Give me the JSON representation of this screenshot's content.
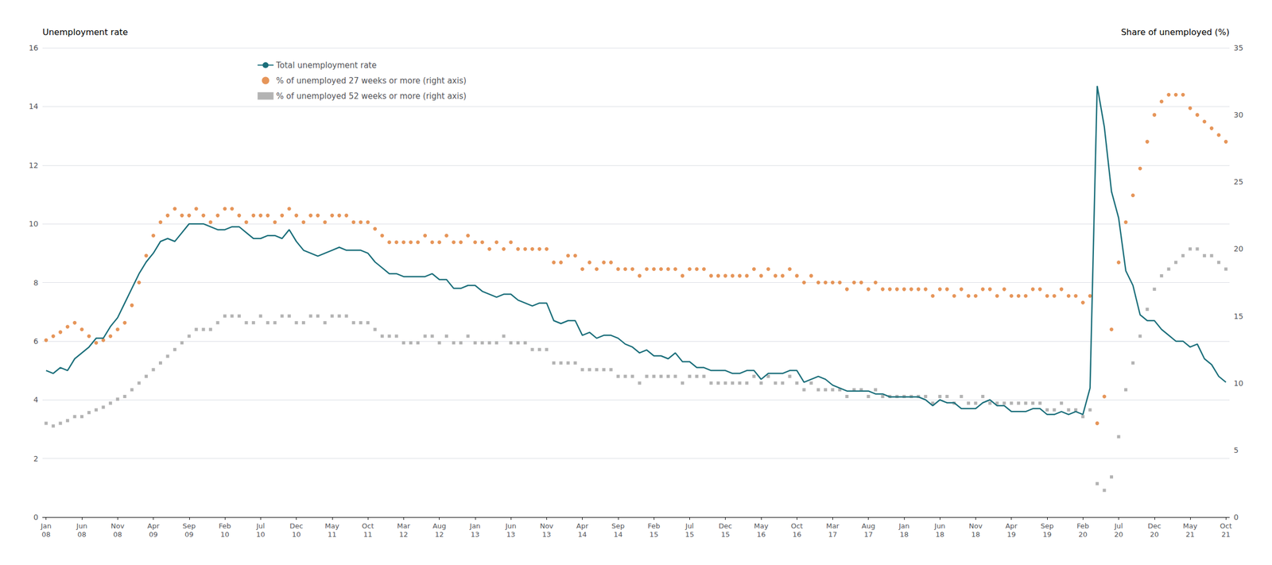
{
  "chart_data": {
    "type": "line",
    "ylabel": "Unemployment rate",
    "y2label": "Share of unemployed (%)",
    "categories": [
      "Jan\n08",
      null,
      null,
      null,
      null,
      "Jun\n08",
      null,
      null,
      null,
      null,
      "Nov\n08",
      null,
      null,
      null,
      null,
      "Apr\n09",
      null,
      null,
      null,
      null,
      "Sep\n09",
      null,
      null,
      null,
      null,
      "Feb\n10",
      null,
      null,
      null,
      null,
      "Jul\n10",
      null,
      null,
      null,
      null,
      "Dec\n10",
      null,
      null,
      null,
      null,
      "May\n11",
      null,
      null,
      null,
      null,
      "Oct\n11",
      null,
      null,
      null,
      null,
      "Mar\n12",
      null,
      null,
      null,
      null,
      "Aug\n12",
      null,
      null,
      null,
      null,
      "Jan\n13",
      null,
      null,
      null,
      null,
      "Jun\n13",
      null,
      null,
      null,
      null,
      "Nov\n13",
      null,
      null,
      null,
      null,
      "Apr\n14",
      null,
      null,
      null,
      null,
      "Sep\n14",
      null,
      null,
      null,
      null,
      "Feb\n15",
      null,
      null,
      null,
      null,
      "Jul\n15",
      null,
      null,
      null,
      null,
      "Dec\n15",
      null,
      null,
      null,
      null,
      "May\n16",
      null,
      null,
      null,
      null,
      "Oct\n16",
      null,
      null,
      null,
      null,
      "Mar\n17",
      null,
      null,
      null,
      null,
      "Aug\n17",
      null,
      null,
      null,
      null,
      "Jan\n18",
      null,
      null,
      null,
      null,
      "Jun\n18",
      null,
      null,
      null,
      null,
      "Nov\n18",
      null,
      null,
      null,
      null,
      "Apr\n19",
      null,
      null,
      null,
      null,
      "Sep\n19",
      null,
      null,
      null,
      null,
      "Feb\n20",
      null,
      null,
      null,
      null,
      "Jul\n20",
      null,
      null,
      null,
      null,
      "Dec\n20",
      null,
      null,
      null,
      null,
      "May\n21",
      null,
      null,
      null,
      null,
      "Oct\n21"
    ],
    "series": [
      {
        "name": "Total unemployment rate",
        "type": "line",
        "line_style": "solid",
        "color": "#1a6e7a",
        "values": [
          5.0,
          4.9,
          5.1,
          5.0,
          5.4,
          5.6,
          5.8,
          6.1,
          6.1,
          6.5,
          6.8,
          7.3,
          7.8,
          8.3,
          8.7,
          9.0,
          9.4,
          9.5,
          9.4,
          9.7,
          10.0,
          10.0,
          10.0,
          9.9,
          9.8,
          9.8,
          9.9,
          9.9,
          9.7,
          9.5,
          9.5,
          9.6,
          9.6,
          9.5,
          9.8,
          9.4,
          9.1,
          9.0,
          8.9,
          9.0,
          9.1,
          9.2,
          9.1,
          9.1,
          9.1,
          9.0,
          8.7,
          8.5,
          8.3,
          8.3,
          8.2,
          8.2,
          8.2,
          8.2,
          8.3,
          8.1,
          8.1,
          7.8,
          7.8,
          7.9,
          7.9,
          7.7,
          7.6,
          7.5,
          7.6,
          7.6,
          7.4,
          7.3,
          7.2,
          7.3,
          7.3,
          6.7,
          6.6,
          6.7,
          6.7,
          6.2,
          6.3,
          6.1,
          6.2,
          6.2,
          6.1,
          5.9,
          5.8,
          5.6,
          5.7,
          5.5,
          5.5,
          5.4,
          5.6,
          5.3,
          5.3,
          5.1,
          5.1,
          5.0,
          5.0,
          5.0,
          4.9,
          4.9,
          5.0,
          5.0,
          4.7,
          4.9,
          4.9,
          4.9,
          5.0,
          5.0,
          4.6,
          4.7,
          4.8,
          4.7,
          4.5,
          4.4,
          4.3,
          4.3,
          4.3,
          4.3,
          4.2,
          4.2,
          4.1,
          4.1,
          4.1,
          4.1,
          4.1,
          4.0,
          3.8,
          4.0,
          3.9,
          3.9,
          3.7,
          3.7,
          3.7,
          3.9,
          4.0,
          3.8,
          3.8,
          3.6,
          3.6,
          3.6,
          3.7,
          3.7,
          3.5,
          3.5,
          3.6,
          3.5,
          3.6,
          3.5,
          4.4,
          14.7,
          13.3,
          11.1,
          10.2,
          8.4,
          7.9,
          6.9,
          6.7,
          6.7,
          6.4,
          6.2,
          6.0,
          6.0,
          5.8,
          5.9,
          5.4,
          5.2,
          4.8,
          4.6
        ]
      },
      {
        "name": "% of unemployed 27 weeks or more (right axis)",
        "type": "scatter",
        "marker": "circle",
        "axis": "y2",
        "color": "#e07b30",
        "values": [
          13.2,
          13.5,
          13.8,
          14.2,
          14.5,
          14.0,
          13.5,
          13.0,
          13.2,
          13.5,
          14.0,
          14.5,
          15.8,
          17.5,
          19.5,
          21.0,
          22.0,
          22.5,
          23.0,
          22.5,
          22.5,
          23.0,
          22.5,
          22.0,
          22.5,
          23.0,
          23.0,
          22.5,
          22.0,
          22.5,
          22.5,
          22.5,
          22.0,
          22.5,
          23.0,
          22.5,
          22.0,
          22.5,
          22.5,
          22.0,
          22.5,
          22.5,
          22.5,
          22.0,
          22.0,
          22.0,
          21.5,
          21.0,
          20.5,
          20.5,
          20.5,
          20.5,
          20.5,
          21.0,
          20.5,
          20.5,
          21.0,
          20.5,
          20.5,
          21.0,
          20.5,
          20.5,
          20.0,
          20.5,
          20.0,
          20.5,
          20.0,
          20.0,
          20.0,
          20.0,
          20.0,
          19.0,
          19.0,
          19.5,
          19.5,
          18.5,
          19.0,
          18.5,
          19.0,
          19.0,
          18.5,
          18.5,
          18.5,
          18.0,
          18.5,
          18.5,
          18.5,
          18.5,
          18.5,
          18.0,
          18.5,
          18.5,
          18.5,
          18.0,
          18.0,
          18.0,
          18.0,
          18.0,
          18.0,
          18.5,
          18.0,
          18.5,
          18.0,
          18.0,
          18.5,
          18.0,
          17.5,
          18.0,
          17.5,
          17.5,
          17.5,
          17.5,
          17.0,
          17.5,
          17.5,
          17.0,
          17.5,
          17.0,
          17.0,
          17.0,
          17.0,
          17.0,
          17.0,
          17.0,
          16.5,
          17.0,
          17.0,
          16.5,
          17.0,
          16.5,
          16.5,
          17.0,
          17.0,
          16.5,
          17.0,
          16.5,
          16.5,
          16.5,
          17.0,
          17.0,
          16.5,
          16.5,
          17.0,
          16.5,
          16.5,
          16.0,
          16.5,
          7.0,
          9.0,
          14.0,
          19.0,
          22.0,
          24.0,
          26.0,
          28.0,
          30.0,
          31.0,
          31.5,
          31.5,
          31.5,
          30.5,
          30.0,
          29.5,
          29.0,
          28.5,
          28.0
        ]
      },
      {
        "name": "% of unemployed 52 weeks or more (right axis)",
        "type": "scatter",
        "marker": "square",
        "axis": "y2",
        "color": "#a0a0a0",
        "values": [
          7.0,
          6.8,
          7.0,
          7.2,
          7.5,
          7.5,
          7.8,
          8.0,
          8.2,
          8.5,
          8.8,
          9.0,
          9.5,
          10.0,
          10.5,
          11.0,
          11.5,
          12.0,
          12.5,
          13.0,
          13.5,
          14.0,
          14.0,
          14.0,
          14.5,
          15.0,
          15.0,
          15.0,
          14.5,
          14.5,
          15.0,
          14.5,
          14.5,
          15.0,
          15.0,
          14.5,
          14.5,
          15.0,
          15.0,
          14.5,
          15.0,
          15.0,
          15.0,
          14.5,
          14.5,
          14.5,
          14.0,
          13.5,
          13.5,
          13.5,
          13.0,
          13.0,
          13.0,
          13.5,
          13.5,
          13.0,
          13.5,
          13.0,
          13.0,
          13.5,
          13.0,
          13.0,
          13.0,
          13.0,
          13.5,
          13.0,
          13.0,
          13.0,
          12.5,
          12.5,
          12.5,
          11.5,
          11.5,
          11.5,
          11.5,
          11.0,
          11.0,
          11.0,
          11.0,
          11.0,
          10.5,
          10.5,
          10.5,
          10.0,
          10.5,
          10.5,
          10.5,
          10.5,
          10.5,
          10.0,
          10.5,
          10.5,
          10.5,
          10.0,
          10.0,
          10.0,
          10.0,
          10.0,
          10.0,
          10.5,
          10.0,
          10.5,
          10.0,
          10.0,
          10.5,
          10.0,
          9.5,
          10.0,
          9.5,
          9.5,
          9.5,
          9.5,
          9.0,
          9.5,
          9.5,
          9.0,
          9.5,
          9.0,
          9.0,
          9.0,
          9.0,
          9.0,
          9.0,
          9.0,
          8.5,
          9.0,
          9.0,
          8.5,
          9.0,
          8.5,
          8.5,
          9.0,
          8.5,
          8.5,
          8.5,
          8.5,
          8.5,
          8.5,
          8.5,
          8.5,
          8.0,
          8.0,
          8.5,
          8.0,
          8.0,
          7.5,
          8.0,
          2.5,
          2.0,
          3.0,
          6.0,
          9.5,
          11.5,
          13.5,
          15.5,
          17.0,
          18.0,
          18.5,
          19.0,
          19.5,
          20.0,
          20.0,
          19.5,
          19.5,
          19.0,
          18.5
        ]
      }
    ],
    "ylim": [
      0,
      16
    ],
    "yticks": [
      0,
      2,
      4,
      6,
      8,
      10,
      12,
      14,
      16
    ],
    "y2lim": [
      0,
      35
    ],
    "y2ticks": [
      0,
      5,
      10,
      15,
      20,
      25,
      30,
      35
    ],
    "grid": true,
    "legend": "upper left"
  }
}
